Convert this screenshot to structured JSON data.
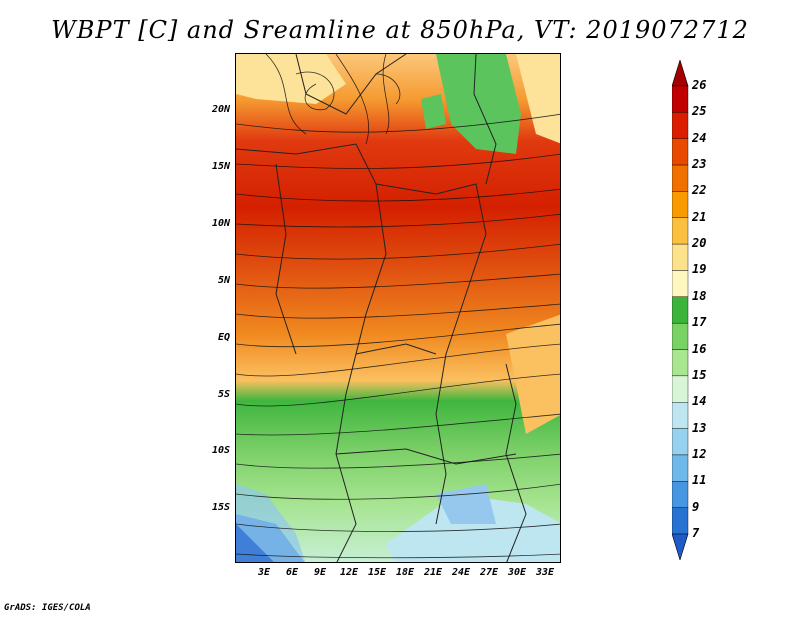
{
  "title": "WBPT [C] and Sreamline at 850hPa, VT: 2019072712",
  "credit": "GrADS: IGES/COLA",
  "map": {
    "lat_labels": [
      "20N",
      "15N",
      "10N",
      "5N",
      "EQ",
      "5S",
      "10S",
      "15S"
    ],
    "lon_labels": [
      "3E",
      "6E",
      "9E",
      "12E",
      "15E",
      "18E",
      "21E",
      "24E",
      "27E",
      "30E",
      "33E"
    ]
  },
  "colorbar": {
    "levels": [
      "26",
      "25",
      "24",
      "23",
      "22",
      "21",
      "20",
      "19",
      "18",
      "17",
      "16",
      "15",
      "14",
      "13",
      "12",
      "11",
      "9",
      "7"
    ],
    "colors": [
      "#a50000",
      "#c00000",
      "#dc1e00",
      "#e84a00",
      "#f07000",
      "#f89a00",
      "#fcc040",
      "#fde28c",
      "#fff7c0",
      "#3cb43c",
      "#78d264",
      "#a8e690",
      "#d8f5d8",
      "#bde6f0",
      "#96d2f0",
      "#6eb9ea",
      "#4696e1",
      "#2873d2",
      "#1e5ac8"
    ]
  }
}
